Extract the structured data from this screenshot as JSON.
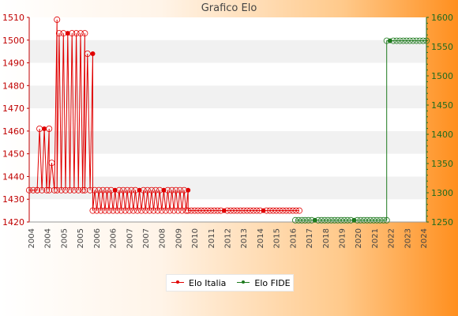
{
  "chart_data": {
    "type": "line",
    "title": "Grafico Elo",
    "xlabel": "",
    "ylabel": "",
    "y_left": {
      "range": [
        1420,
        1510
      ],
      "ticks": [
        1420,
        1430,
        1440,
        1450,
        1460,
        1470,
        1480,
        1490,
        1500,
        1510
      ]
    },
    "y_right": {
      "range": [
        1250,
        1600
      ],
      "ticks": [
        1250,
        1300,
        1350,
        1400,
        1450,
        1500,
        1550,
        1600
      ]
    },
    "grid": "horizontal-bands",
    "legend": {
      "placement": "bottom-center"
    },
    "x_tick_labels": [
      "2004",
      "2004",
      "2005",
      "2005",
      "2006",
      "2006",
      "2007",
      "2007",
      "2008",
      "2009",
      "2010",
      "2011",
      "2012",
      "2013",
      "2014",
      "2015",
      "2016",
      "2017",
      "2018",
      "2019",
      "2020",
      "2021",
      "2022",
      "2023",
      "2024"
    ],
    "series": [
      {
        "name": "Elo Italia",
        "axis": "left",
        "color": "#e00000",
        "segments": [
          {
            "from": 0,
            "to": 2,
            "values": [
              1434
            ]
          },
          {
            "from": 2,
            "to": 5,
            "values": [
              1434,
              1461,
              1434,
              1461,
              1434,
              1461
            ]
          },
          {
            "from": 5,
            "to": 7,
            "values": [
              1434,
              1446,
              1434,
              1509
            ]
          },
          {
            "from": 7,
            "to": 14,
            "values": [
              1434,
              1503,
              1434,
              1503,
              1434,
              1503,
              1434,
              1503,
              1434,
              1503,
              1434,
              1503,
              1434,
              1503
            ]
          },
          {
            "from": 14,
            "to": 16,
            "values": [
              1434,
              1494,
              1434,
              1494
            ]
          },
          {
            "from": 16,
            "to": 40,
            "values": [
              1425,
              1434,
              1425,
              1434,
              1425,
              1434,
              1425,
              1434,
              1425,
              1434,
              1425,
              1434,
              1425,
              1434,
              1425,
              1434,
              1425,
              1434,
              1425,
              1434,
              1425,
              1434,
              1425,
              1434,
              1425,
              1434,
              1425,
              1434,
              1425,
              1434,
              1425,
              1434,
              1425,
              1434,
              1425,
              1434,
              1425,
              1434,
              1425,
              1434,
              1425,
              1434,
              1425,
              1434,
              1425,
              1434,
              1425,
              1434
            ]
          },
          {
            "from": 40,
            "to": 68,
            "values": [
              1425
            ]
          }
        ]
      },
      {
        "name": "Elo FIDE",
        "axis": "right",
        "color": "#1e7a1e",
        "segments": [
          {
            "from": 67,
            "to": 90,
            "values": [
              1253
            ]
          },
          {
            "from": 90,
            "to": 100,
            "values": [
              1560
            ]
          }
        ]
      }
    ]
  }
}
